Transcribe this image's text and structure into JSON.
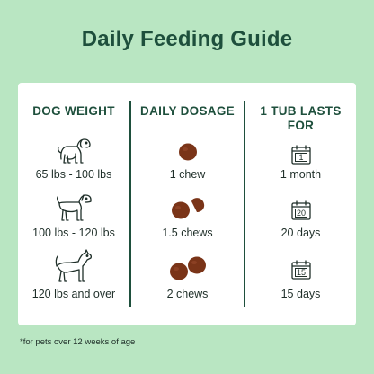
{
  "title": "Daily Feeding Guide",
  "columns": {
    "weight": "DOG WEIGHT",
    "dosage": "DAILY DOSAGE",
    "lasts": "1 TUB LASTS FOR"
  },
  "rows": [
    {
      "weight": "65 lbs - 100 lbs",
      "dosage": "1 chew",
      "calendar_number": "1",
      "lasts": "1 month",
      "dog_icon": "small-dog-icon",
      "chew_icon": "one-chew-icon"
    },
    {
      "weight": "100 lbs - 120 lbs",
      "dosage": "1.5 chews",
      "calendar_number": "20",
      "lasts": "20 days",
      "dog_icon": "medium-dog-icon",
      "chew_icon": "one-and-half-chew-icon"
    },
    {
      "weight": "120 lbs and over",
      "dosage": "2 chews",
      "calendar_number": "15",
      "lasts": "15 days",
      "dog_icon": "large-dog-icon",
      "chew_icon": "two-chews-icon"
    }
  ],
  "footnote": "*for pets over 12 weeks of age",
  "colors": {
    "background": "#b9e6c2",
    "accent": "#1e4f3c",
    "chew": "#7a3418"
  }
}
